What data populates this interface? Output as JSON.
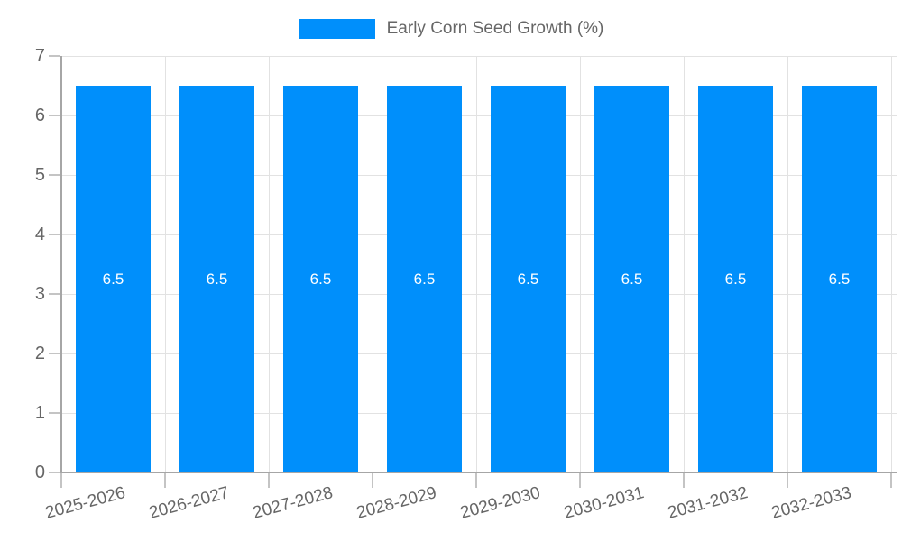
{
  "chart_data": {
    "type": "bar",
    "title": "Early Corn Seed Growth (%)",
    "categories": [
      "2025-2026",
      "2026-2027",
      "2027-2028",
      "2028-2029",
      "2029-2030",
      "2030-2031",
      "2031-2032",
      "2032-2033"
    ],
    "values": [
      6.5,
      6.5,
      6.5,
      6.5,
      6.5,
      6.5,
      6.5,
      6.5
    ],
    "value_labels": [
      "6.5",
      "6.5",
      "6.5",
      "6.5",
      "6.5",
      "6.5",
      "6.5",
      "6.5"
    ],
    "xlabel": "",
    "ylabel": "",
    "ylim": [
      0,
      7
    ],
    "yticks": [
      0,
      1,
      2,
      3,
      4,
      5,
      6,
      7
    ],
    "grid": true,
    "legend_position": "top",
    "colors": {
      "bar": "#008FFB",
      "data_label": "#FFFFFF",
      "axis_text": "#666666",
      "grid_line": "#E2E2E2",
      "axis_line": "#A6A6A6",
      "tick": "#C4C4C4"
    }
  }
}
